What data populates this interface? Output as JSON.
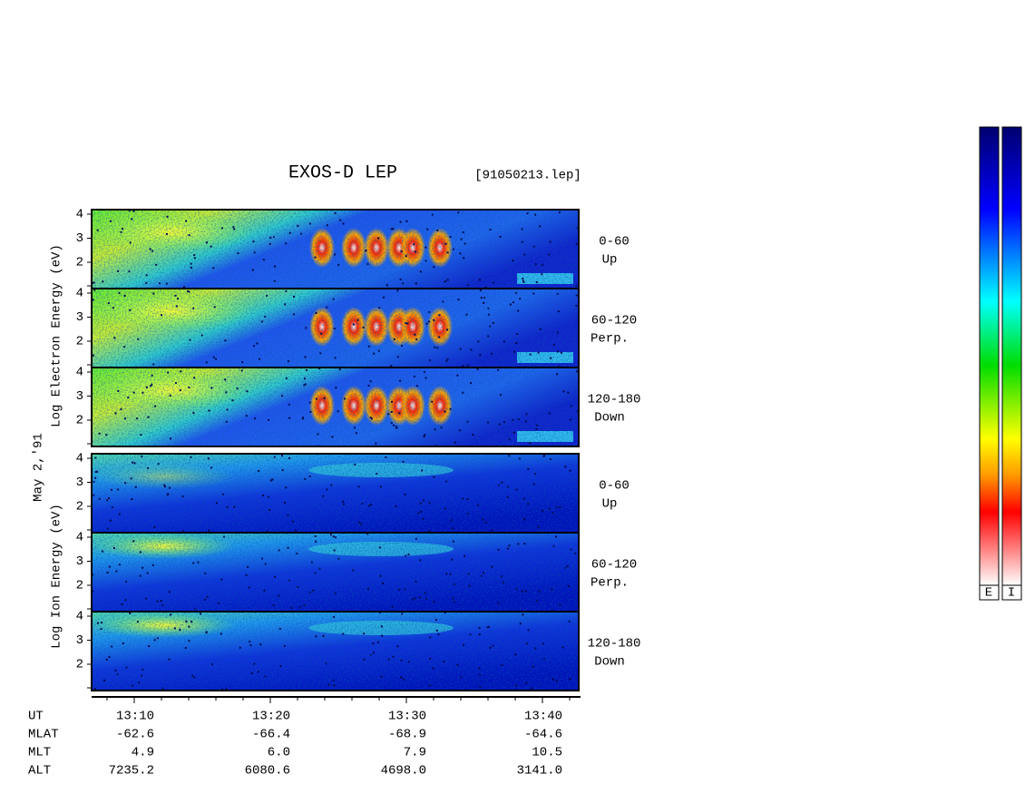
{
  "header": {
    "title": "EXOS-D LEP",
    "file": "[91050213.lep]"
  },
  "date": "May  2,'91",
  "yticks": [
    2,
    3,
    4
  ],
  "groups": [
    {
      "axis_label": "Log Electron Energy (eV)",
      "panels": [
        {
          "label": "0-60",
          "sublabel": "Up"
        },
        {
          "label": "60-120",
          "sublabel": "Perp."
        },
        {
          "label": "120-180",
          "sublabel": "Down"
        }
      ]
    },
    {
      "axis_label": "Log Ion Energy (eV)",
      "panels": [
        {
          "label": "0-60",
          "sublabel": "Up"
        },
        {
          "label": "60-120",
          "sublabel": "Perp."
        },
        {
          "label": "120-180",
          "sublabel": "Down"
        }
      ]
    }
  ],
  "ephemeris": [
    {
      "label": "UT",
      "values": [
        "13:10",
        "13:20",
        "13:30",
        "13:40"
      ]
    },
    {
      "label": "MLAT",
      "values": [
        "-62.6",
        "-66.4",
        "-68.9",
        "-64.6"
      ]
    },
    {
      "label": "MLT",
      "values": [
        "4.9",
        "6.0",
        "7.9",
        "10.5"
      ]
    },
    {
      "label": "ALT",
      "values": [
        "7235.2",
        "6080.6",
        "4698.0",
        "3141.0"
      ]
    }
  ],
  "colorbar_labels": [
    "E",
    "I"
  ]
}
